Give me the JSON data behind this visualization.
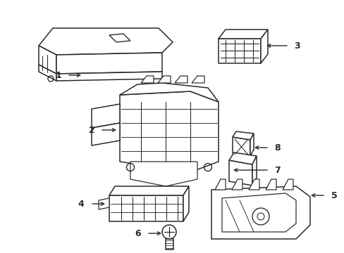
{
  "background_color": "#ffffff",
  "line_color": "#2a2a2a",
  "line_width": 1.1,
  "figsize": [
    4.89,
    3.6
  ],
  "dpi": 100
}
